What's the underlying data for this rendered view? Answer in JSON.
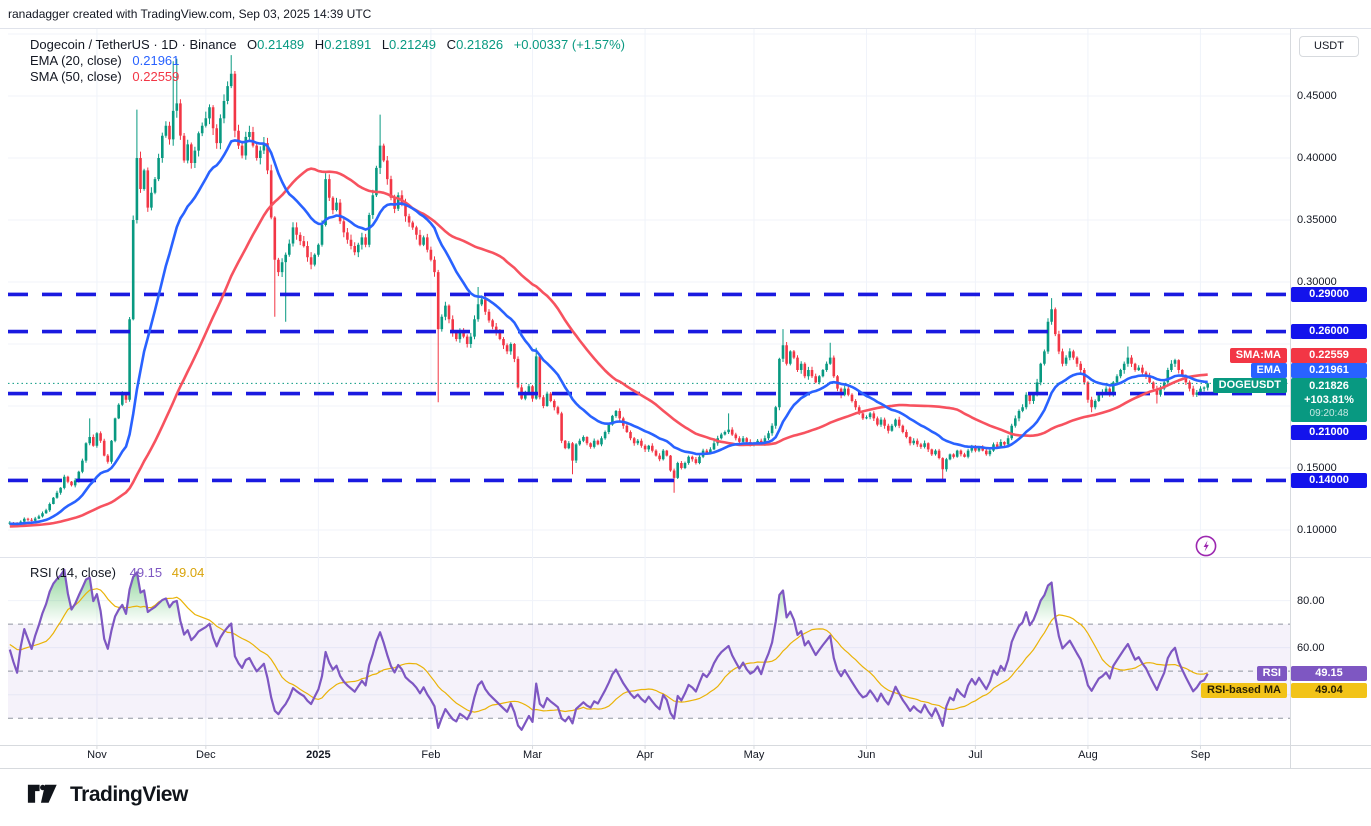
{
  "header": {
    "attribution": "ranadagger created with TradingView.com, Sep 03, 2025 14:39 UTC"
  },
  "legend": {
    "symbol_line": "Dogecoin / TetherUS · 1D · Binance",
    "o_key": "O",
    "o_val": "0.21489",
    "h_key": "H",
    "h_val": "0.21891",
    "l_key": "L",
    "l_val": "0.21249",
    "c_key": "C",
    "c_val": "0.21826",
    "change": "+0.00337 (+1.57%)",
    "ema_label": "EMA (20, close)",
    "ema_value": "0.21961",
    "sma_label": "SMA (50, close)",
    "sma_value": "0.22559",
    "rsi_label": "RSI (14, close)",
    "rsi_value": "49.15",
    "rsi_ma_value": "49.04"
  },
  "axis": {
    "currency_button": "USDT",
    "price_labels": [
      {
        "text": "0.45000",
        "price": 0.45
      },
      {
        "text": "0.40000",
        "price": 0.4
      },
      {
        "text": "0.35000",
        "price": 0.35
      },
      {
        "text": "0.30000",
        "price": 0.3
      },
      {
        "text": "0.15000",
        "price": 0.15
      },
      {
        "text": "0.10000",
        "price": 0.1
      }
    ],
    "level_badges": [
      {
        "text": "0.29000",
        "price": 0.29
      },
      {
        "text": "0.26000",
        "price": 0.26
      },
      {
        "text": "0.21000",
        "price": 0.21
      },
      {
        "text": "0.14000",
        "price": 0.14
      }
    ],
    "sma_tag": "SMA:MA",
    "sma_badge_value": "0.22559",
    "ema_tag": "EMA",
    "ema_badge_value": "0.21961",
    "symbol_tag": "DOGEUSDT",
    "price_badge": {
      "value": "0.21826",
      "change_pct": "+103.81%",
      "countdown": "09:20:48"
    },
    "rsi_labels": [
      {
        "text": "80.00",
        "value": 80
      },
      {
        "text": "60.00",
        "value": 60
      }
    ],
    "rsi_tag": "RSI",
    "rsi_badge_value": "49.15",
    "rsi_ma_tag": "RSI-based MA",
    "rsi_ma_badge_value": "49.04",
    "months": [
      {
        "label": "Nov",
        "day": 24
      },
      {
        "label": "Dec",
        "day": 54
      },
      {
        "label": "2025",
        "day": 85,
        "bold": true
      },
      {
        "label": "Feb",
        "day": 116
      },
      {
        "label": "Mar",
        "day": 144
      },
      {
        "label": "Apr",
        "day": 175
      },
      {
        "label": "May",
        "day": 205
      },
      {
        "label": "Jun",
        "day": 236
      },
      {
        "label": "Jul",
        "day": 266
      },
      {
        "label": "Aug",
        "day": 297
      },
      {
        "label": "Sep",
        "day": 328
      }
    ]
  },
  "footer": {
    "logo_text": "TradingView"
  },
  "colors": {
    "up": "#089981",
    "down": "#f23645",
    "ema": "#2962ff",
    "sma": "#f7525f",
    "level_line": "#1a1ae0",
    "level_badge": "#1313ec",
    "current_price": "#089981",
    "rsi": "#7e57c2",
    "rsi_ma": "#eab308",
    "grid": "#f0f3fa",
    "axis_border": "#d7dade",
    "band_dash": "#9196a1",
    "band_fill": "rgba(126,87,194,0.08)",
    "overbought_fill": "#22ab38",
    "boost_purple": "#9c27b0"
  },
  "chart_data": {
    "type": "candlestick",
    "symbol": "DOGEUSDT",
    "exchange": "Binance",
    "timeframe": "1D",
    "day0_date": "2024-10-08",
    "last_date": "2025-09-03",
    "price_levels_dashed": [
      0.29,
      0.26,
      0.21,
      0.14
    ],
    "current_price": 0.21826,
    "last_candle": {
      "open": 0.21489,
      "high": 0.21891,
      "low": 0.21249,
      "close": 0.21826
    },
    "price_axis_range": [
      0.0795,
      0.5035
    ],
    "rsi_axis_range": [
      17.5,
      97.5
    ],
    "rsi_bands": [
      70,
      50,
      30
    ],
    "indicators": {
      "ema_period": 20,
      "sma_period": 50,
      "rsi_period": 14,
      "rsi_ma_period": 14,
      "ema_last": 0.21961,
      "sma_last": 0.22559,
      "rsi_last": 49.15,
      "rsi_ma_last": 49.04
    },
    "close_anchors": [
      [
        -50,
        0.101
      ],
      [
        -44,
        0.0985
      ],
      [
        -38,
        0.103
      ],
      [
        -32,
        0.1
      ],
      [
        -26,
        0.104
      ],
      [
        -20,
        0.102
      ],
      [
        -14,
        0.106
      ],
      [
        -8,
        0.104
      ],
      [
        -4,
        0.107
      ],
      [
        -1,
        0.105
      ],
      [
        0,
        0.106
      ],
      [
        2,
        0.1045
      ],
      [
        4,
        0.109
      ],
      [
        6,
        0.1075
      ],
      [
        8,
        0.111
      ],
      [
        10,
        0.116
      ],
      [
        12,
        0.126
      ],
      [
        14,
        0.134
      ],
      [
        15,
        0.143
      ],
      [
        16,
        0.139
      ],
      [
        17,
        0.136
      ],
      [
        18,
        0.14
      ],
      [
        19,
        0.147
      ],
      [
        20,
        0.156
      ],
      [
        21,
        0.17
      ],
      [
        22,
        0.175
      ],
      [
        23,
        0.168
      ],
      [
        24,
        0.178
      ],
      [
        25,
        0.172
      ],
      [
        26,
        0.16
      ],
      [
        27,
        0.155
      ],
      [
        28,
        0.172
      ],
      [
        29,
        0.19
      ],
      [
        30,
        0.201
      ],
      [
        31,
        0.21
      ],
      [
        32,
        0.205
      ],
      [
        33,
        0.27
      ],
      [
        34,
        0.35
      ],
      [
        35,
        0.4
      ],
      [
        36,
        0.375
      ],
      [
        37,
        0.39
      ],
      [
        38,
        0.36
      ],
      [
        39,
        0.372
      ],
      [
        40,
        0.383
      ],
      [
        41,
        0.4
      ],
      [
        42,
        0.418
      ],
      [
        43,
        0.426
      ],
      [
        44,
        0.415
      ],
      [
        45,
        0.438
      ],
      [
        46,
        0.444
      ],
      [
        47,
        0.418
      ],
      [
        48,
        0.398
      ],
      [
        49,
        0.411
      ],
      [
        50,
        0.396
      ],
      [
        51,
        0.406
      ],
      [
        52,
        0.42
      ],
      [
        53,
        0.426
      ],
      [
        54,
        0.432
      ],
      [
        55,
        0.441
      ],
      [
        56,
        0.424
      ],
      [
        57,
        0.412
      ],
      [
        58,
        0.432
      ],
      [
        59,
        0.446
      ],
      [
        60,
        0.458
      ],
      [
        61,
        0.468
      ],
      [
        62,
        0.422
      ],
      [
        63,
        0.41
      ],
      [
        64,
        0.402
      ],
      [
        65,
        0.417
      ],
      [
        66,
        0.421
      ],
      [
        67,
        0.41
      ],
      [
        68,
        0.4
      ],
      [
        69,
        0.406
      ],
      [
        70,
        0.412
      ],
      [
        71,
        0.39
      ],
      [
        72,
        0.352
      ],
      [
        73,
        0.318
      ],
      [
        74,
        0.308
      ],
      [
        75,
        0.316
      ],
      [
        76,
        0.322
      ],
      [
        77,
        0.331
      ],
      [
        78,
        0.344
      ],
      [
        79,
        0.338
      ],
      [
        80,
        0.333
      ],
      [
        81,
        0.329
      ],
      [
        82,
        0.32
      ],
      [
        83,
        0.314
      ],
      [
        84,
        0.322
      ],
      [
        85,
        0.33
      ],
      [
        86,
        0.346
      ],
      [
        87,
        0.383
      ],
      [
        88,
        0.368
      ],
      [
        89,
        0.358
      ],
      [
        90,
        0.364
      ],
      [
        91,
        0.349
      ],
      [
        92,
        0.34
      ],
      [
        93,
        0.334
      ],
      [
        94,
        0.329
      ],
      [
        95,
        0.324
      ],
      [
        96,
        0.33
      ],
      [
        97,
        0.336
      ],
      [
        98,
        0.33
      ],
      [
        99,
        0.354
      ],
      [
        100,
        0.37
      ],
      [
        101,
        0.392
      ],
      [
        102,
        0.41
      ],
      [
        103,
        0.398
      ],
      [
        104,
        0.383
      ],
      [
        105,
        0.368
      ],
      [
        106,
        0.359
      ],
      [
        107,
        0.37
      ],
      [
        108,
        0.364
      ],
      [
        109,
        0.353
      ],
      [
        110,
        0.348
      ],
      [
        111,
        0.344
      ],
      [
        112,
        0.338
      ],
      [
        113,
        0.33
      ],
      [
        114,
        0.336
      ],
      [
        115,
        0.326
      ],
      [
        116,
        0.318
      ],
      [
        117,
        0.308
      ],
      [
        118,
        0.262
      ],
      [
        119,
        0.272
      ],
      [
        120,
        0.281
      ],
      [
        121,
        0.27
      ],
      [
        122,
        0.259
      ],
      [
        123,
        0.254
      ],
      [
        124,
        0.261
      ],
      [
        125,
        0.256
      ],
      [
        126,
        0.25
      ],
      [
        127,
        0.256
      ],
      [
        128,
        0.27
      ],
      [
        129,
        0.282
      ],
      [
        130,
        0.286
      ],
      [
        131,
        0.276
      ],
      [
        132,
        0.269
      ],
      [
        133,
        0.264
      ],
      [
        134,
        0.259
      ],
      [
        135,
        0.254
      ],
      [
        136,
        0.249
      ],
      [
        137,
        0.244
      ],
      [
        138,
        0.25
      ],
      [
        139,
        0.238
      ],
      [
        140,
        0.215
      ],
      [
        141,
        0.206
      ],
      [
        142,
        0.211
      ],
      [
        143,
        0.216
      ],
      [
        144,
        0.206
      ],
      [
        145,
        0.24
      ],
      [
        146,
        0.207
      ],
      [
        147,
        0.2
      ],
      [
        148,
        0.21
      ],
      [
        149,
        0.204
      ],
      [
        150,
        0.199
      ],
      [
        151,
        0.194
      ],
      [
        152,
        0.172
      ],
      [
        153,
        0.166
      ],
      [
        154,
        0.17
      ],
      [
        155,
        0.156
      ],
      [
        156,
        0.169
      ],
      [
        157,
        0.172
      ],
      [
        158,
        0.175
      ],
      [
        159,
        0.17
      ],
      [
        160,
        0.167
      ],
      [
        161,
        0.172
      ],
      [
        162,
        0.169
      ],
      [
        163,
        0.174
      ],
      [
        164,
        0.179
      ],
      [
        165,
        0.185
      ],
      [
        166,
        0.192
      ],
      [
        167,
        0.196
      ],
      [
        168,
        0.19
      ],
      [
        169,
        0.184
      ],
      [
        170,
        0.179
      ],
      [
        171,
        0.174
      ],
      [
        172,
        0.17
      ],
      [
        173,
        0.172
      ],
      [
        174,
        0.168
      ],
      [
        175,
        0.165
      ],
      [
        176,
        0.168
      ],
      [
        177,
        0.164
      ],
      [
        178,
        0.16
      ],
      [
        179,
        0.157
      ],
      [
        180,
        0.164
      ],
      [
        181,
        0.16
      ],
      [
        182,
        0.148
      ],
      [
        183,
        0.142
      ],
      [
        184,
        0.154
      ],
      [
        185,
        0.15
      ],
      [
        186,
        0.154
      ],
      [
        187,
        0.159
      ],
      [
        188,
        0.157
      ],
      [
        189,
        0.154
      ],
      [
        190,
        0.159
      ],
      [
        191,
        0.164
      ],
      [
        192,
        0.162
      ],
      [
        193,
        0.165
      ],
      [
        194,
        0.17
      ],
      [
        195,
        0.174
      ],
      [
        196,
        0.177
      ],
      [
        197,
        0.179
      ],
      [
        198,
        0.181
      ],
      [
        199,
        0.177
      ],
      [
        200,
        0.174
      ],
      [
        201,
        0.171
      ],
      [
        202,
        0.174
      ],
      [
        203,
        0.171
      ],
      [
        204,
        0.169
      ],
      [
        205,
        0.17
      ],
      [
        206,
        0.172
      ],
      [
        207,
        0.169
      ],
      [
        208,
        0.174
      ],
      [
        209,
        0.178
      ],
      [
        210,
        0.184
      ],
      [
        211,
        0.199
      ],
      [
        212,
        0.238
      ],
      [
        213,
        0.249
      ],
      [
        214,
        0.234
      ],
      [
        215,
        0.244
      ],
      [
        216,
        0.239
      ],
      [
        217,
        0.229
      ],
      [
        218,
        0.234
      ],
      [
        219,
        0.224
      ],
      [
        220,
        0.229
      ],
      [
        221,
        0.224
      ],
      [
        222,
        0.219
      ],
      [
        223,
        0.224
      ],
      [
        224,
        0.229
      ],
      [
        225,
        0.234
      ],
      [
        226,
        0.239
      ],
      [
        227,
        0.224
      ],
      [
        228,
        0.214
      ],
      [
        229,
        0.209
      ],
      [
        230,
        0.214
      ],
      [
        231,
        0.209
      ],
      [
        232,
        0.204
      ],
      [
        233,
        0.199
      ],
      [
        234,
        0.194
      ],
      [
        235,
        0.19
      ],
      [
        236,
        0.191
      ],
      [
        237,
        0.194
      ],
      [
        238,
        0.19
      ],
      [
        239,
        0.185
      ],
      [
        240,
        0.189
      ],
      [
        241,
        0.184
      ],
      [
        242,
        0.18
      ],
      [
        243,
        0.184
      ],
      [
        244,
        0.189
      ],
      [
        245,
        0.184
      ],
      [
        246,
        0.179
      ],
      [
        247,
        0.175
      ],
      [
        248,
        0.17
      ],
      [
        249,
        0.172
      ],
      [
        250,
        0.169
      ],
      [
        251,
        0.167
      ],
      [
        252,
        0.17
      ],
      [
        253,
        0.165
      ],
      [
        254,
        0.161
      ],
      [
        255,
        0.164
      ],
      [
        256,
        0.158
      ],
      [
        257,
        0.149
      ],
      [
        258,
        0.157
      ],
      [
        259,
        0.161
      ],
      [
        260,
        0.159
      ],
      [
        261,
        0.164
      ],
      [
        262,
        0.161
      ],
      [
        263,
        0.159
      ],
      [
        264,
        0.164
      ],
      [
        265,
        0.167
      ],
      [
        266,
        0.164
      ],
      [
        267,
        0.167
      ],
      [
        268,
        0.164
      ],
      [
        269,
        0.161
      ],
      [
        270,
        0.164
      ],
      [
        271,
        0.169
      ],
      [
        272,
        0.167
      ],
      [
        273,
        0.171
      ],
      [
        274,
        0.169
      ],
      [
        275,
        0.174
      ],
      [
        276,
        0.184
      ],
      [
        277,
        0.19
      ],
      [
        278,
        0.196
      ],
      [
        279,
        0.199
      ],
      [
        280,
        0.209
      ],
      [
        281,
        0.204
      ],
      [
        282,
        0.209
      ],
      [
        283,
        0.219
      ],
      [
        284,
        0.234
      ],
      [
        285,
        0.244
      ],
      [
        286,
        0.268
      ],
      [
        287,
        0.278
      ],
      [
        288,
        0.258
      ],
      [
        289,
        0.244
      ],
      [
        290,
        0.234
      ],
      [
        291,
        0.239
      ],
      [
        292,
        0.244
      ],
      [
        293,
        0.239
      ],
      [
        294,
        0.234
      ],
      [
        295,
        0.229
      ],
      [
        296,
        0.219
      ],
      [
        297,
        0.205
      ],
      [
        298,
        0.199
      ],
      [
        299,
        0.204
      ],
      [
        300,
        0.209
      ],
      [
        301,
        0.211
      ],
      [
        302,
        0.214
      ],
      [
        303,
        0.209
      ],
      [
        304,
        0.219
      ],
      [
        305,
        0.224
      ],
      [
        306,
        0.229
      ],
      [
        307,
        0.234
      ],
      [
        308,
        0.239
      ],
      [
        309,
        0.234
      ],
      [
        310,
        0.229
      ],
      [
        311,
        0.231
      ],
      [
        312,
        0.227
      ],
      [
        313,
        0.224
      ],
      [
        314,
        0.219
      ],
      [
        315,
        0.214
      ],
      [
        316,
        0.209
      ],
      [
        317,
        0.214
      ],
      [
        318,
        0.219
      ],
      [
        319,
        0.229
      ],
      [
        320,
        0.234
      ],
      [
        321,
        0.237
      ],
      [
        322,
        0.229
      ],
      [
        323,
        0.224
      ],
      [
        324,
        0.219
      ],
      [
        325,
        0.214
      ],
      [
        326,
        0.209
      ],
      [
        327,
        0.211
      ],
      [
        328,
        0.214
      ],
      [
        329,
        0.2149
      ],
      [
        330,
        0.21826
      ]
    ],
    "wick_events": [
      {
        "d": 22,
        "h": 0.19
      },
      {
        "d": 35,
        "h": 0.439
      },
      {
        "d": 45,
        "h": 0.478
      },
      {
        "d": 46,
        "h": 0.48
      },
      {
        "d": 61,
        "h": 0.483
      },
      {
        "d": 73,
        "l": 0.272
      },
      {
        "d": 76,
        "l": 0.268
      },
      {
        "d": 102,
        "h": 0.435
      },
      {
        "d": 118,
        "l": 0.203
      },
      {
        "d": 129,
        "h": 0.296
      },
      {
        "d": 145,
        "h": 0.247
      },
      {
        "d": 155,
        "l": 0.145
      },
      {
        "d": 183,
        "l": 0.13
      },
      {
        "d": 198,
        "h": 0.194
      },
      {
        "d": 213,
        "h": 0.262
      },
      {
        "d": 226,
        "h": 0.251
      },
      {
        "d": 257,
        "l": 0.141
      },
      {
        "d": 287,
        "h": 0.287
      },
      {
        "d": 298,
        "l": 0.195
      },
      {
        "d": 308,
        "h": 0.248
      },
      {
        "d": 316,
        "l": 0.202
      },
      {
        "d": 330,
        "h": 0.21891,
        "l": 0.21249,
        "o": 0.21489
      }
    ]
  }
}
